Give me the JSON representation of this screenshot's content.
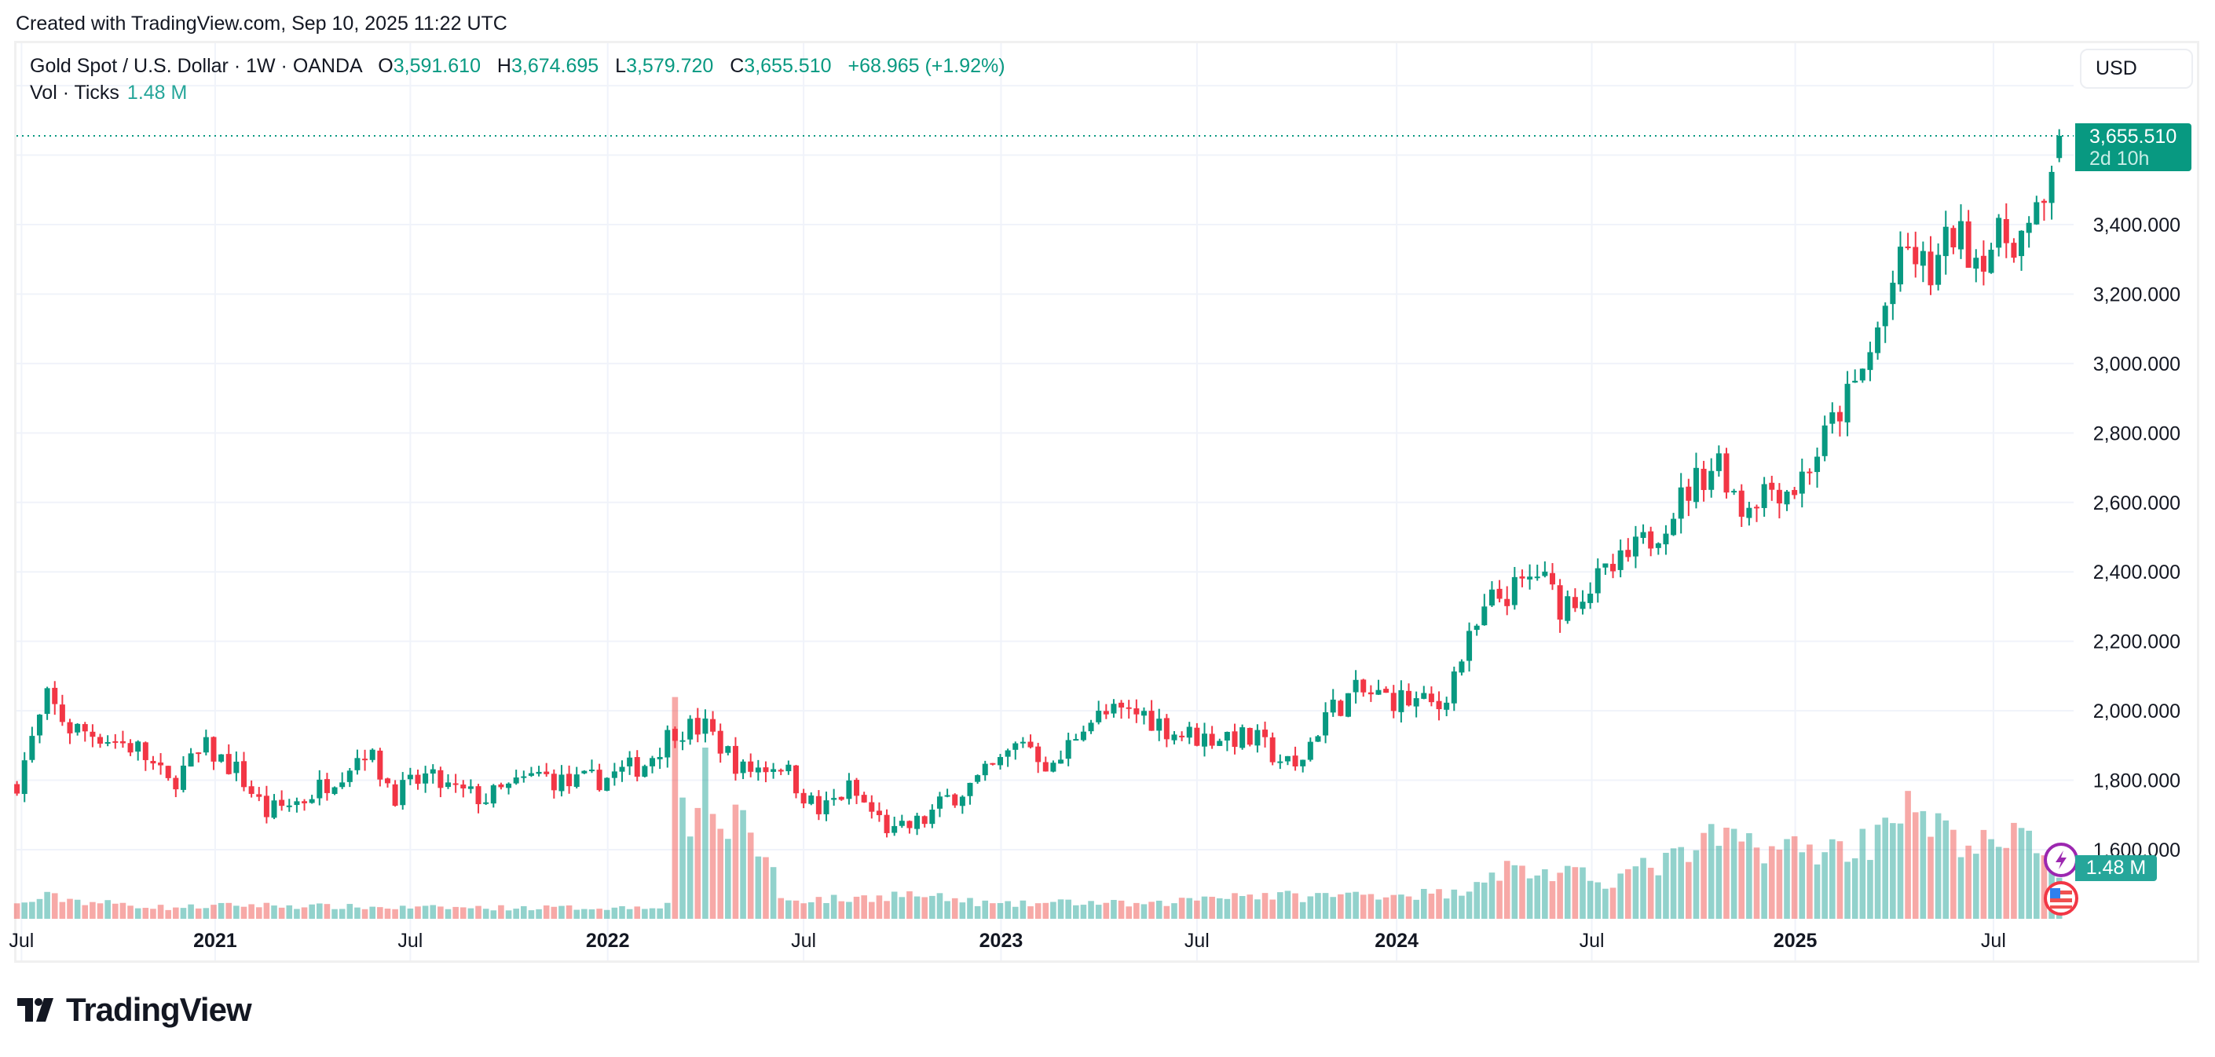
{
  "created": "Created with TradingView.com, Sep 10, 2025 11:22 UTC",
  "legend": {
    "symbol": "Gold Spot / U.S. Dollar · 1W · OANDA",
    "o_label": "O",
    "o": "3,591.610",
    "h_label": "H",
    "h": "3,674.695",
    "l_label": "L",
    "l": "3,579.720",
    "c_label": "C",
    "c": "3,655.510",
    "change": "+68.965 (+1.92%)",
    "vol_label": "Vol · Ticks",
    "vol": "1.48 M"
  },
  "currency_button": "USD",
  "price_tag": {
    "price": "3,655.510",
    "countdown": "2d 10h"
  },
  "volume_tag": "1.48 M",
  "brand": "TradingView",
  "colors": {
    "up": "#089981",
    "down": "#F23645",
    "vol_up": "#26a69a",
    "vol_down": "#ef5350",
    "grid": "#f0f3fa"
  },
  "chart_data": {
    "type": "candlestick",
    "title": "Gold Spot / U.S. Dollar · 1W · OANDA",
    "ylabel": "USD",
    "ylim": [
      1400,
      3860
    ],
    "y_ticks": [
      "3,400.000",
      "3,200.000",
      "3,000.000",
      "2,800.000",
      "2,600.000",
      "2,400.000",
      "2,200.000",
      "2,000.000",
      "1,800.000",
      "1,600.000"
    ],
    "y_tick_values": [
      3400,
      3200,
      3000,
      2800,
      2600,
      2400,
      2200,
      2000,
      1800,
      1600
    ],
    "x_ticks": [
      {
        "label": "Jul",
        "week": 0.6
      },
      {
        "label": "2021",
        "week": 26.2
      },
      {
        "label": "Jul",
        "week": 52
      },
      {
        "label": "2022",
        "week": 78.1
      },
      {
        "label": "Jul",
        "week": 104
      },
      {
        "label": "2023",
        "week": 130.1
      },
      {
        "label": "Jul",
        "week": 156
      },
      {
        "label": "2024",
        "week": 182.4
      },
      {
        "label": "Jul",
        "week": 208.2
      },
      {
        "label": "2025",
        "week": 235.1
      },
      {
        "label": "Jul",
        "week": 261.3
      }
    ],
    "weeks": 271,
    "close_anchors_week_price": [
      [
        0,
        1796
      ],
      [
        4,
        2032
      ],
      [
        7,
        1950
      ],
      [
        11,
        1930
      ],
      [
        16,
        1890
      ],
      [
        20,
        1788
      ],
      [
        25,
        1890
      ],
      [
        29,
        1828
      ],
      [
        33,
        1706
      ],
      [
        38,
        1747
      ],
      [
        43,
        1828
      ],
      [
        46,
        1890
      ],
      [
        50,
        1760
      ],
      [
        54,
        1808
      ],
      [
        58,
        1767
      ],
      [
        62,
        1747
      ],
      [
        69,
        1816
      ],
      [
        73,
        1788
      ],
      [
        78,
        1808
      ],
      [
        83,
        1849
      ],
      [
        87,
        1950
      ],
      [
        91,
        1950
      ],
      [
        96,
        1828
      ],
      [
        101,
        1849
      ],
      [
        103,
        1788
      ],
      [
        106,
        1706
      ],
      [
        110,
        1775
      ],
      [
        114,
        1686
      ],
      [
        116,
        1645
      ],
      [
        120,
        1686
      ],
      [
        123,
        1747
      ],
      [
        127,
        1796
      ],
      [
        130,
        1849
      ],
      [
        133,
        1922
      ],
      [
        137,
        1828
      ],
      [
        141,
        1971
      ],
      [
        145,
        1991
      ],
      [
        149,
        1991
      ],
      [
        153,
        1938
      ],
      [
        157,
        1922
      ],
      [
        160,
        1930
      ],
      [
        164,
        1910
      ],
      [
        169,
        1828
      ],
      [
        173,
        1991
      ],
      [
        177,
        2052
      ],
      [
        183,
        2032
      ],
      [
        188,
        2011
      ],
      [
        191,
        2154
      ],
      [
        195,
        2317
      ],
      [
        199,
        2358
      ],
      [
        201,
        2398
      ],
      [
        204,
        2305
      ],
      [
        208,
        2358
      ],
      [
        212,
        2419
      ],
      [
        216,
        2500
      ],
      [
        219,
        2582
      ],
      [
        222,
        2663
      ],
      [
        225,
        2724
      ],
      [
        228,
        2582
      ],
      [
        231,
        2643
      ],
      [
        235,
        2643
      ],
      [
        238,
        2744
      ],
      [
        241,
        2867
      ],
      [
        243,
        2928
      ],
      [
        245,
        3029
      ],
      [
        248,
        3233
      ],
      [
        250,
        3323
      ],
      [
        253,
        3253
      ],
      [
        256,
        3376
      ],
      [
        259,
        3314
      ],
      [
        262,
        3355
      ],
      [
        266,
        3376
      ],
      [
        268,
        3445
      ],
      [
        269,
        3579
      ],
      [
        270,
        3655.51
      ]
    ],
    "last_candle": {
      "open": 3591.61,
      "high": 3674.695,
      "low": 3579.72,
      "close": 3655.51
    },
    "volume_anchors_week_millions": [
      [
        0,
        0.5
      ],
      [
        4,
        0.8
      ],
      [
        10,
        0.6
      ],
      [
        20,
        0.4
      ],
      [
        30,
        0.5
      ],
      [
        50,
        0.4
      ],
      [
        80,
        0.4
      ],
      [
        86,
        0.5
      ],
      [
        87,
        8.3
      ],
      [
        88,
        5.0
      ],
      [
        89,
        3.3
      ],
      [
        90,
        4.0
      ],
      [
        91,
        5.0
      ],
      [
        92,
        3.2
      ],
      [
        95,
        3.5
      ],
      [
        96,
        4.0
      ],
      [
        97,
        3.3
      ],
      [
        98,
        2.5
      ],
      [
        100,
        1.8
      ],
      [
        101,
        0.7
      ],
      [
        110,
        0.7
      ],
      [
        117,
        0.9
      ],
      [
        130,
        0.5
      ],
      [
        140,
        0.6
      ],
      [
        150,
        0.5
      ],
      [
        160,
        0.9
      ],
      [
        170,
        0.8
      ],
      [
        180,
        0.9
      ],
      [
        190,
        0.9
      ],
      [
        194,
        1.6
      ],
      [
        197,
        1.8
      ],
      [
        210,
        1.4
      ],
      [
        220,
        2.2
      ],
      [
        225,
        2.9
      ],
      [
        235,
        2.5
      ],
      [
        240,
        2.5
      ],
      [
        245,
        2.8
      ],
      [
        248,
        4.2
      ],
      [
        255,
        3.0
      ],
      [
        262,
        2.5
      ],
      [
        266,
        3.2
      ],
      [
        270,
        1.48
      ]
    ],
    "current_price": 3655.51,
    "current_volume_millions": 1.48
  }
}
